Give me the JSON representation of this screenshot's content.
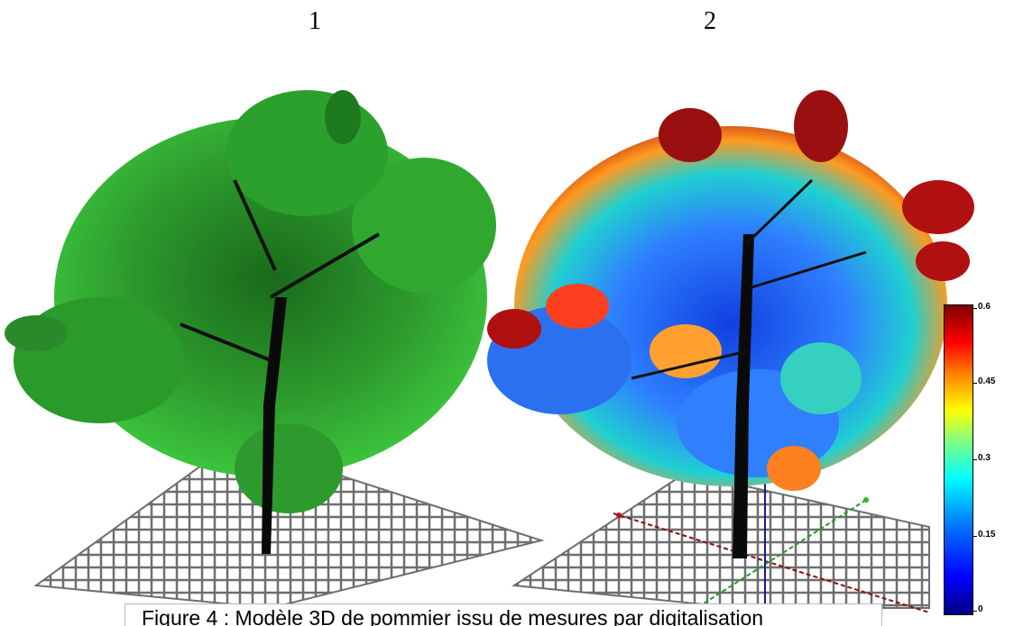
{
  "panels": [
    {
      "label": "1",
      "description_color": "#2a9a2a"
    },
    {
      "label": "2"
    }
  ],
  "colorbar": {
    "ticks": [
      "0.6",
      "0.45",
      "0.3",
      "0.15",
      "0"
    ],
    "colors": [
      "#000080",
      "#0000ff",
      "#00ffff",
      "#ffff00",
      "#ff0000",
      "#800000"
    ]
  },
  "caption": "Figure 4 : Modèle 3D de pommier issu de mesures par digitalisation"
}
